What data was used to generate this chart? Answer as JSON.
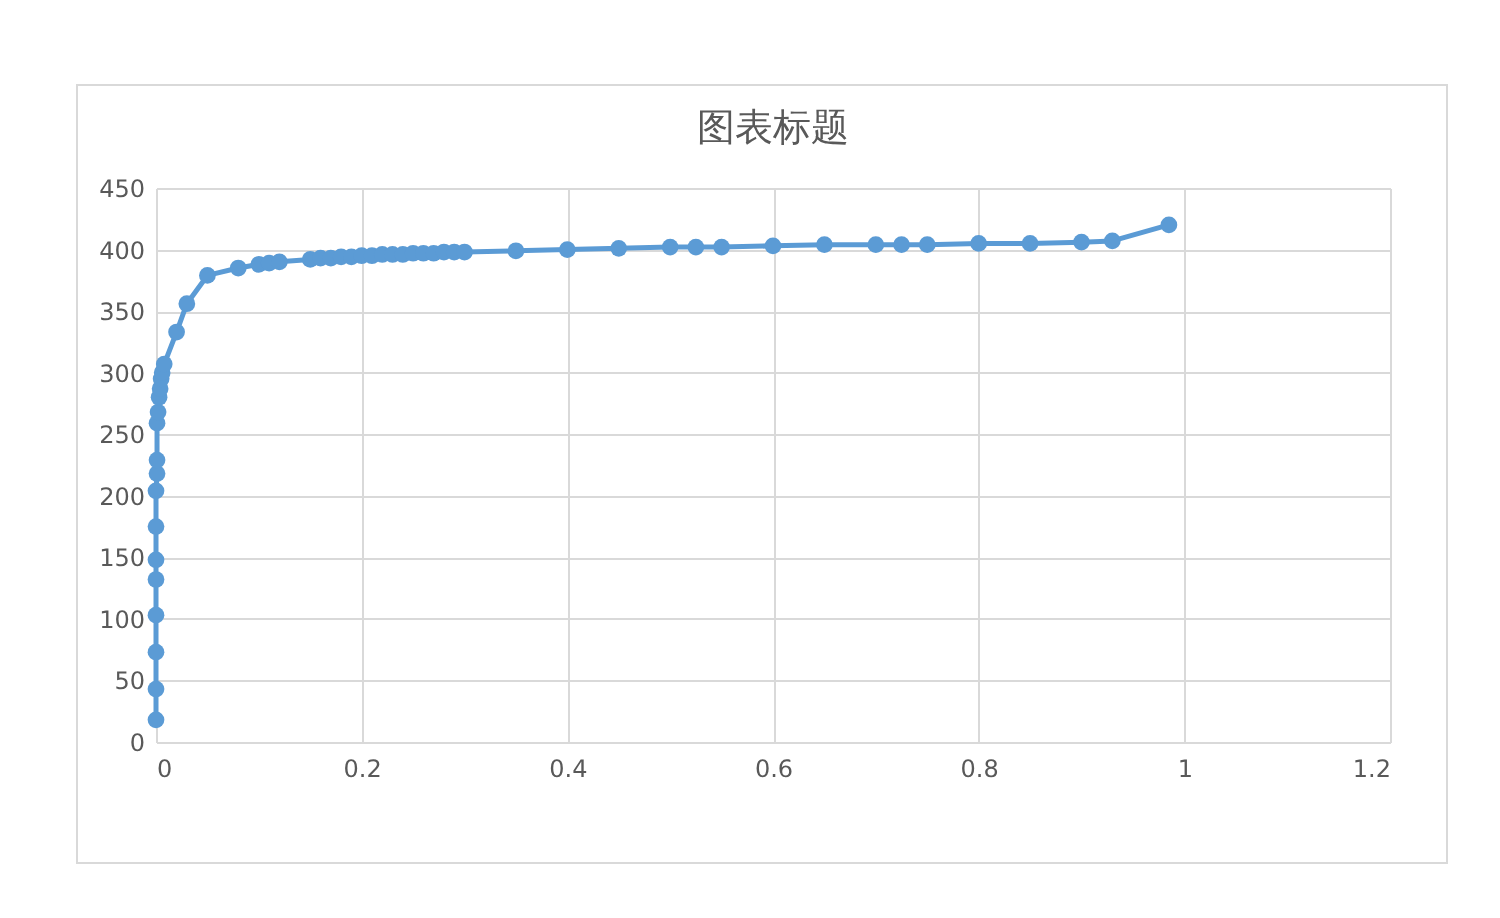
{
  "chart_data": {
    "type": "line",
    "title": "图表标题",
    "x": [
      0,
      0,
      0,
      0,
      0,
      0,
      0,
      0,
      0.001,
      0.001,
      0.001,
      0.002,
      0.003,
      0.004,
      0.005,
      0.006,
      0.008,
      0.02,
      0.03,
      0.05,
      0.08,
      0.1,
      0.11,
      0.12,
      0.15,
      0.16,
      0.17,
      0.18,
      0.19,
      0.2,
      0.21,
      0.22,
      0.23,
      0.24,
      0.25,
      0.26,
      0.27,
      0.28,
      0.29,
      0.3,
      0.35,
      0.4,
      0.45,
      0.5,
      0.525,
      0.55,
      0.6,
      0.65,
      0.7,
      0.725,
      0.75,
      0.8,
      0.85,
      0.9,
      0.93,
      0.985
    ],
    "series": [
      {
        "color": "#5b9bd5",
        "values": [
          18,
          43,
          73,
          103,
          132,
          148,
          175,
          204,
          218,
          229,
          259,
          268,
          280,
          287,
          295,
          300,
          307,
          333,
          356,
          379,
          385,
          388,
          389,
          390,
          392,
          393,
          393,
          394,
          394,
          395,
          395,
          396,
          396,
          396,
          397,
          397,
          397,
          398,
          398,
          398,
          399,
          400,
          401,
          402,
          402,
          402,
          403,
          404,
          404,
          404,
          404,
          405,
          405,
          406,
          407,
          420
        ]
      }
    ],
    "xlim": [
      0,
      1.2
    ],
    "xticks": [
      0,
      0.2,
      0.4,
      0.6,
      0.8,
      1,
      1.2
    ],
    "ylim": [
      0,
      450
    ],
    "yticks": [
      0,
      50,
      100,
      150,
      200,
      250,
      300,
      350,
      400,
      450
    ],
    "grid": true,
    "marker": "circle",
    "line_style": "solid"
  }
}
